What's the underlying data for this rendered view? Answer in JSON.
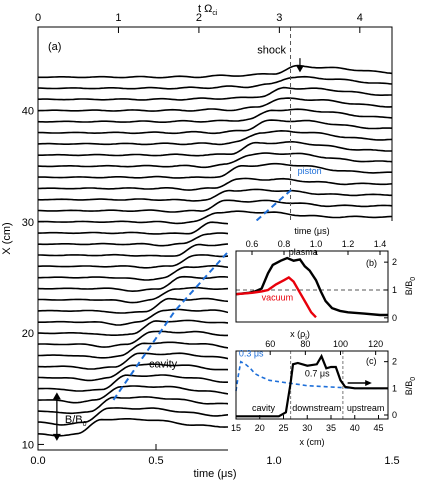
{
  "chart_data": [
    {
      "type": "line",
      "panel_label": "(a)",
      "xlabel": "time (μs)",
      "ylabel": "X (cm)",
      "top_axis_label": "t Ω",
      "top_axis_label_subscript": "ci",
      "xlim": [
        0,
        1.5
      ],
      "ylim": [
        9.5,
        47.5
      ],
      "xticks": [
        0.0,
        0.5,
        1.0,
        1.5
      ],
      "xtick_labels": [
        "0.0",
        "0.5",
        "1.0",
        "1.5"
      ],
      "yticks": [
        10,
        20,
        30,
        40
      ],
      "ytick_labels": [
        "10",
        "20",
        "30",
        "40"
      ],
      "top_xlim": [
        0,
        4.4
      ],
      "top_xticks": [
        0,
        1,
        2,
        3,
        4
      ],
      "top_xtick_labels": [
        "0",
        "1",
        "2",
        "3",
        "4"
      ],
      "vline_time": 1.07,
      "baselines_cm": [
        11,
        12,
        13,
        14,
        15,
        16,
        17,
        18,
        19,
        20,
        21,
        22,
        23,
        24,
        25,
        26,
        27,
        28,
        29,
        30,
        31,
        32,
        33,
        34,
        35,
        36,
        37,
        38,
        39,
        40,
        41,
        42,
        43
      ],
      "piston_path": {
        "name": "piston",
        "x": [
          0.32,
          0.45,
          0.58,
          0.75,
          0.92,
          1.08
        ],
        "y": [
          14,
          18,
          22,
          26,
          30,
          33
        ]
      },
      "annotations": {
        "shock": "shock",
        "piston": "piston",
        "cavity": "cavity",
        "scale_bar": "B/B",
        "scale_bar_subscript": "0"
      },
      "colors": {
        "traces": "#000000",
        "piston": "#1e6fd9",
        "vline": "#555555"
      }
    },
    {
      "type": "line",
      "panel_label": "(b)",
      "xlabel": "time (μs)",
      "ylabel": "B/B",
      "ylabel_subscript": "0",
      "xlim": [
        0.5,
        1.45
      ],
      "ylim": [
        -0.15,
        2.4
      ],
      "xticks": [
        0.6,
        0.8,
        1.0,
        1.2,
        1.4
      ],
      "xtick_labels": [
        "0.6",
        "0.8",
        "1.0",
        "1.2",
        "1.4"
      ],
      "yticks": [
        0,
        1,
        2
      ],
      "ytick_labels": [
        "0",
        "1",
        "2"
      ],
      "reference_line_y": 1,
      "series": [
        {
          "name": "plasma",
          "color": "#000000",
          "x": [
            0.5,
            0.58,
            0.62,
            0.66,
            0.7,
            0.73,
            0.78,
            0.82,
            0.86,
            0.9,
            0.93,
            0.96,
            1.0,
            1.03,
            1.06,
            1.1,
            1.15,
            1.2,
            1.3,
            1.4,
            1.45
          ],
          "y": [
            0.85,
            0.9,
            0.95,
            1.05,
            1.6,
            1.9,
            2.05,
            2.15,
            2.05,
            2.1,
            1.85,
            1.7,
            1.35,
            0.95,
            0.6,
            0.35,
            0.25,
            0.2,
            0.15,
            0.1,
            0.1
          ]
        },
        {
          "name": "vacuum",
          "color": "#e8000b",
          "x": [
            0.5,
            0.6,
            0.66,
            0.7,
            0.75,
            0.8,
            0.83,
            0.86,
            0.9,
            0.94,
            0.97,
            1.0
          ],
          "y": [
            0.85,
            0.9,
            0.95,
            1.0,
            1.2,
            1.35,
            1.45,
            1.3,
            0.9,
            0.5,
            0.2,
            0.02
          ]
        }
      ]
    },
    {
      "type": "line",
      "panel_label": "(c)",
      "xlabel": "x (cm)",
      "top_axis_label": "x (ρ",
      "top_axis_label_subscript": "i",
      "top_axis_label_end": ")",
      "ylabel": "B/B",
      "ylabel_subscript": "0",
      "xlim": [
        15,
        47
      ],
      "ylim": [
        -0.15,
        2.4
      ],
      "xticks": [
        15,
        20,
        25,
        30,
        35,
        40,
        45
      ],
      "xtick_labels": [
        "15",
        "20",
        "25",
        "30",
        "35",
        "40",
        "45"
      ],
      "top_xticks": [
        60,
        80,
        100,
        120
      ],
      "top_xtick_labels": [
        "60",
        "80",
        "100",
        "120"
      ],
      "top_cm_per_rho": 0.37,
      "yticks": [
        0,
        1,
        2
      ],
      "ytick_labels": [
        "0",
        "1",
        "2"
      ],
      "region_boundaries": [
        26.5,
        37.5
      ],
      "regions": [
        "cavity",
        "downstream",
        "upstream"
      ],
      "time_labels": [
        "0.3 μs",
        "0.7 μs"
      ],
      "series": [
        {
          "name": "0.3 μs",
          "color": "#1e6fd9",
          "x": [
            15,
            15.5,
            16,
            17,
            18,
            19,
            20,
            22,
            24,
            26,
            28,
            30,
            35,
            40,
            45,
            47
          ],
          "y": [
            0.9,
            1.5,
            2.0,
            1.9,
            1.75,
            1.55,
            1.45,
            1.3,
            1.25,
            1.2,
            1.15,
            1.1,
            1.05,
            1.0,
            1.0,
            1.0
          ]
        },
        {
          "name": "0.7 μs",
          "color": "#000000",
          "x": [
            15,
            20,
            24,
            25.5,
            26.5,
            27,
            28,
            30,
            32,
            33,
            34,
            35,
            36,
            37,
            38,
            40,
            43,
            47
          ],
          "y": [
            -0.05,
            -0.05,
            -0.05,
            0.1,
            1.2,
            1.9,
            1.95,
            1.85,
            1.9,
            2.2,
            1.75,
            1.8,
            1.8,
            1.3,
            1.05,
            1.0,
            1.0,
            1.0
          ]
        }
      ]
    }
  ]
}
